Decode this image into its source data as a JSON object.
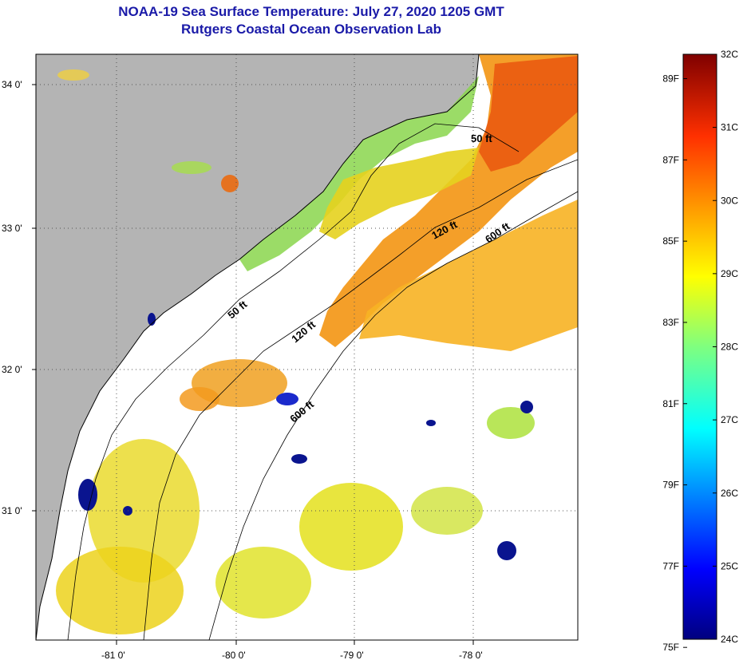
{
  "header": {
    "title": "NOAA-19 Sea Surface Temperature:  July 27, 2020 1205 GMT",
    "subtitle": "Rutgers Coastal Ocean Observation Lab"
  },
  "map": {
    "lat_labels": [
      "34 0'",
      "33 0'",
      "32 0'",
      "31 0'"
    ],
    "lon_labels": [
      "-81 0'",
      "-80 0'",
      "-79 0'",
      "-78 0'"
    ],
    "isobaths": [
      "50 ft",
      "120 ft",
      "600 ft",
      "50 ft",
      "120 ft",
      "600 ft"
    ]
  },
  "colorbar": {
    "fahrenheit": [
      "89F",
      "87F",
      "85F",
      "83F",
      "81F",
      "79F",
      "77F",
      "75F"
    ],
    "celsius": [
      "32C",
      "31C",
      "30C",
      "29C",
      "28C",
      "27C",
      "26C",
      "25C",
      "24C"
    ],
    "min_c": 24,
    "max_c": 32
  },
  "colors": {
    "title": "#1a1aa8",
    "land": "#b4b4b4",
    "cloud": "#ffffff",
    "coast": "#000000"
  }
}
